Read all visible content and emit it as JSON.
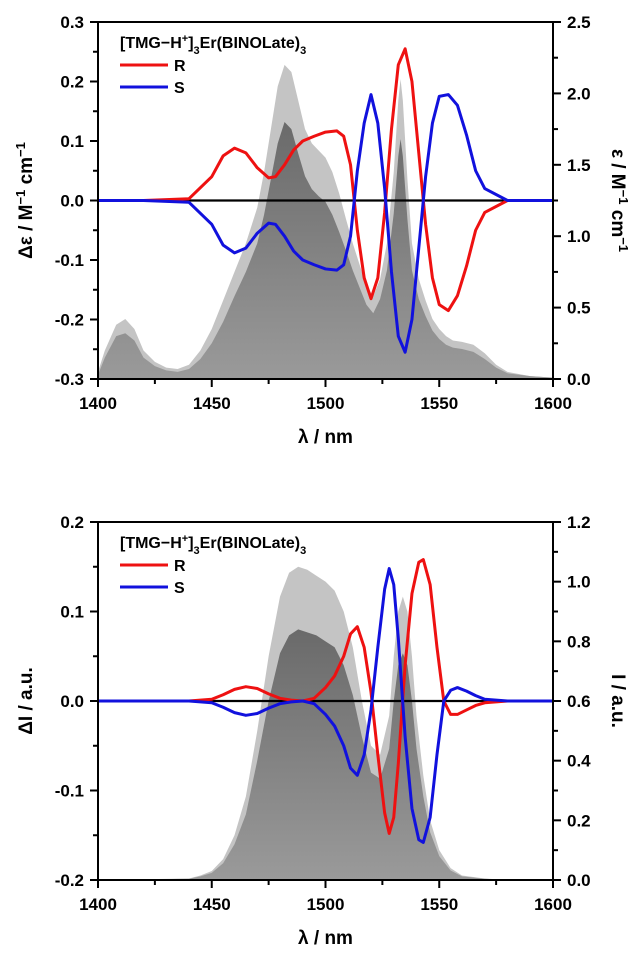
{
  "chart_data": [
    {
      "type": "line",
      "panel": "top",
      "compound": {
        "base": "[TMG−H",
        "sup": "+",
        "after_sup": "]",
        "sub1": "3",
        "middle": "Er(BINOLate)",
        "sub2": "3"
      },
      "xlabel": "λ / nm",
      "ylabel_left": {
        "base": "Δε / M",
        "sup1": "−1",
        "mid": " cm",
        "sup2": "−1"
      },
      "ylabel_right": {
        "base": "ε / M",
        "sup1": "−1",
        "mid": " cm",
        "sup2": "−1"
      },
      "xlim": [
        1400,
        1600
      ],
      "ylim_left": [
        -0.3,
        0.3
      ],
      "ylim_right": [
        0.0,
        2.5
      ],
      "x_ticks": [
        1400,
        1450,
        1500,
        1550,
        1600
      ],
      "x_tick_labels": [
        "1400",
        "1450",
        "1500",
        "1550",
        "1600"
      ],
      "y_left_ticks": [
        -0.3,
        -0.2,
        -0.1,
        0.0,
        0.1,
        0.2,
        0.3
      ],
      "y_left_tick_labels": [
        "-0.3",
        "-0.2",
        "-0.1",
        "0.0",
        "0.1",
        "0.2",
        "0.3"
      ],
      "y_right_ticks": [
        0.0,
        0.5,
        1.0,
        1.5,
        2.0,
        2.5
      ],
      "y_right_tick_labels": [
        "0.0",
        "0.5",
        "1.0",
        "1.5",
        "2.0",
        "2.5"
      ],
      "legend_position": "top-left",
      "series": [
        {
          "name": "R",
          "color": "#ee1111",
          "axis": "left",
          "x": [
            1400,
            1420,
            1440,
            1450,
            1455,
            1460,
            1465,
            1470,
            1475,
            1478,
            1482,
            1486,
            1490,
            1495,
            1500,
            1505,
            1508,
            1511,
            1514,
            1517,
            1520,
            1523,
            1526,
            1529,
            1532,
            1535,
            1538,
            1541,
            1544,
            1547,
            1550,
            1554,
            1558,
            1562,
            1566,
            1570,
            1580,
            1590,
            1600
          ],
          "y": [
            0,
            0,
            0.003,
            0.04,
            0.075,
            0.088,
            0.08,
            0.055,
            0.038,
            0.04,
            0.06,
            0.085,
            0.1,
            0.108,
            0.115,
            0.117,
            0.108,
            0.06,
            -0.05,
            -0.13,
            -0.165,
            -0.13,
            -0.02,
            0.12,
            0.228,
            0.255,
            0.2,
            0.08,
            -0.04,
            -0.13,
            -0.175,
            -0.185,
            -0.16,
            -0.11,
            -0.05,
            -0.02,
            0,
            0,
            0
          ]
        },
        {
          "name": "S",
          "color": "#1111dd",
          "axis": "left",
          "x": [
            1400,
            1420,
            1440,
            1450,
            1455,
            1460,
            1465,
            1470,
            1475,
            1478,
            1482,
            1486,
            1490,
            1495,
            1500,
            1505,
            1508,
            1511,
            1514,
            1517,
            1520,
            1523,
            1526,
            1529,
            1532,
            1535,
            1538,
            1541,
            1544,
            1547,
            1550,
            1554,
            1558,
            1562,
            1566,
            1570,
            1580,
            1590,
            1600
          ],
          "y": [
            0,
            0,
            -0.003,
            -0.04,
            -0.075,
            -0.088,
            -0.08,
            -0.055,
            -0.038,
            -0.04,
            -0.06,
            -0.085,
            -0.1,
            -0.108,
            -0.115,
            -0.117,
            -0.108,
            -0.06,
            0.05,
            0.13,
            0.178,
            0.13,
            0.02,
            -0.12,
            -0.228,
            -0.255,
            -0.2,
            -0.08,
            0.04,
            0.13,
            0.175,
            0.178,
            0.16,
            0.11,
            0.05,
            0.02,
            0,
            0,
            0
          ]
        },
        {
          "name": "",
          "color": "#c4c4c4",
          "axis": "right",
          "fill": true,
          "x": [
            1400,
            1403,
            1408,
            1412,
            1416,
            1420,
            1425,
            1430,
            1435,
            1440,
            1445,
            1450,
            1455,
            1460,
            1465,
            1470,
            1473,
            1476,
            1479,
            1482,
            1485,
            1488,
            1491,
            1494,
            1497,
            1500,
            1503,
            1506,
            1509,
            1512,
            1515,
            1518,
            1521,
            1524,
            1527,
            1530,
            1532,
            1533,
            1534,
            1536,
            1538,
            1541,
            1544,
            1547,
            1550,
            1553,
            1556,
            1560,
            1565,
            1570,
            1575,
            1580,
            1590,
            1600
          ],
          "y": [
            0.05,
            0.2,
            0.38,
            0.42,
            0.35,
            0.2,
            0.12,
            0.08,
            0.07,
            0.1,
            0.2,
            0.35,
            0.55,
            0.75,
            0.95,
            1.2,
            1.45,
            1.75,
            2.05,
            2.2,
            2.15,
            1.95,
            1.75,
            1.65,
            1.6,
            1.55,
            1.45,
            1.3,
            1.12,
            0.95,
            0.8,
            0.65,
            0.58,
            0.7,
            0.95,
            1.45,
            1.95,
            2.1,
            1.95,
            1.4,
            0.95,
            0.7,
            0.55,
            0.42,
            0.35,
            0.3,
            0.27,
            0.26,
            0.24,
            0.18,
            0.1,
            0.05,
            0.02,
            0.01
          ]
        },
        {
          "name": "",
          "color": "#777777",
          "axis": "right",
          "fill": true,
          "x": [
            1400,
            1403,
            1408,
            1412,
            1416,
            1420,
            1425,
            1430,
            1435,
            1440,
            1445,
            1450,
            1455,
            1460,
            1465,
            1470,
            1473,
            1476,
            1479,
            1482,
            1485,
            1488,
            1491,
            1494,
            1497,
            1500,
            1503,
            1506,
            1509,
            1512,
            1515,
            1518,
            1521,
            1524,
            1527,
            1530,
            1532,
            1533,
            1534,
            1536,
            1538,
            1541,
            1544,
            1547,
            1550,
            1553,
            1556,
            1560,
            1565,
            1570,
            1575,
            1580,
            1590,
            1600
          ],
          "y": [
            0.03,
            0.15,
            0.3,
            0.32,
            0.27,
            0.15,
            0.09,
            0.06,
            0.05,
            0.07,
            0.14,
            0.25,
            0.4,
            0.58,
            0.75,
            0.95,
            1.15,
            1.4,
            1.65,
            1.8,
            1.75,
            1.58,
            1.42,
            1.33,
            1.28,
            1.24,
            1.15,
            1.03,
            0.9,
            0.76,
            0.64,
            0.52,
            0.46,
            0.56,
            0.76,
            1.16,
            1.56,
            1.68,
            1.56,
            1.12,
            0.76,
            0.56,
            0.44,
            0.34,
            0.28,
            0.24,
            0.22,
            0.21,
            0.19,
            0.14,
            0.08,
            0.04,
            0.02,
            0.01
          ]
        }
      ]
    },
    {
      "type": "line",
      "panel": "bottom",
      "compound": {
        "base": "[TMG−H",
        "sup": "+",
        "after_sup": "]",
        "sub1": "3",
        "middle": "Er(BINOLate)",
        "sub2": "3"
      },
      "xlabel": "λ / nm",
      "ylabel_left": {
        "base": "ΔI / a.u.",
        "sup1": "",
        "mid": "",
        "sup2": ""
      },
      "ylabel_right": {
        "base": "I / a.u.",
        "sup1": "",
        "mid": "",
        "sup2": ""
      },
      "xlim": [
        1400,
        1600
      ],
      "ylim_left": [
        -0.2,
        0.2
      ],
      "ylim_right": [
        0.0,
        1.2
      ],
      "x_ticks": [
        1400,
        1450,
        1500,
        1550,
        1600
      ],
      "x_tick_labels": [
        "1400",
        "1450",
        "1500",
        "1550",
        "1600"
      ],
      "y_left_ticks": [
        -0.2,
        -0.1,
        0.0,
        0.1,
        0.2
      ],
      "y_left_tick_labels": [
        "-0.2",
        "-0.1",
        "0.0",
        "0.1",
        "0.2"
      ],
      "y_right_ticks": [
        0.0,
        0.2,
        0.4,
        0.6,
        0.8,
        1.0,
        1.2
      ],
      "y_right_tick_labels": [
        "0.0",
        "0.2",
        "0.4",
        "0.6",
        "0.8",
        "1.0",
        "1.2"
      ],
      "legend_position": "top-left",
      "series": [
        {
          "name": "R",
          "color": "#ee1111",
          "axis": "left",
          "x": [
            1400,
            1440,
            1450,
            1455,
            1460,
            1465,
            1470,
            1475,
            1480,
            1485,
            1490,
            1495,
            1500,
            1504,
            1508,
            1511,
            1514,
            1517,
            1520,
            1523,
            1526,
            1528,
            1530,
            1532,
            1535,
            1538,
            1541,
            1543,
            1546,
            1549,
            1552,
            1555,
            1558,
            1562,
            1566,
            1570,
            1580,
            1590,
            1600
          ],
          "y": [
            0,
            0,
            0.002,
            0.007,
            0.013,
            0.016,
            0.014,
            0.008,
            0.003,
            0.001,
            0,
            0.003,
            0.015,
            0.028,
            0.05,
            0.075,
            0.083,
            0.06,
            0.01,
            -0.06,
            -0.125,
            -0.148,
            -0.13,
            -0.07,
            0.04,
            0.12,
            0.155,
            0.158,
            0.13,
            0.06,
            0,
            -0.015,
            -0.015,
            -0.01,
            -0.005,
            -0.002,
            0,
            0,
            0
          ]
        },
        {
          "name": "S",
          "color": "#1111dd",
          "axis": "left",
          "x": [
            1400,
            1440,
            1450,
            1455,
            1460,
            1465,
            1470,
            1475,
            1480,
            1485,
            1490,
            1495,
            1500,
            1504,
            1508,
            1511,
            1514,
            1517,
            1520,
            1523,
            1526,
            1528,
            1530,
            1532,
            1535,
            1538,
            1541,
            1543,
            1546,
            1549,
            1552,
            1555,
            1558,
            1562,
            1566,
            1570,
            1580,
            1590,
            1600
          ],
          "y": [
            0,
            0,
            -0.002,
            -0.007,
            -0.013,
            -0.016,
            -0.014,
            -0.008,
            -0.003,
            -0.001,
            0,
            -0.003,
            -0.015,
            -0.028,
            -0.05,
            -0.075,
            -0.083,
            -0.06,
            -0.01,
            0.06,
            0.125,
            0.148,
            0.13,
            0.07,
            -0.04,
            -0.12,
            -0.155,
            -0.158,
            -0.13,
            -0.06,
            0,
            0.012,
            0.015,
            0.011,
            0.006,
            0.002,
            0,
            0,
            0
          ]
        },
        {
          "name": "",
          "color": "#c4c4c4",
          "axis": "right",
          "fill": true,
          "x": [
            1400,
            1440,
            1445,
            1450,
            1455,
            1460,
            1465,
            1470,
            1475,
            1480,
            1484,
            1488,
            1492,
            1496,
            1500,
            1504,
            1508,
            1512,
            1516,
            1520,
            1524,
            1528,
            1530,
            1532,
            1534,
            1536,
            1538,
            1540,
            1543,
            1546,
            1550,
            1555,
            1560,
            1570,
            1580,
            1600
          ],
          "y": [
            0,
            0.005,
            0.015,
            0.03,
            0.07,
            0.15,
            0.28,
            0.5,
            0.75,
            0.95,
            1.03,
            1.05,
            1.04,
            1.02,
            1.0,
            0.97,
            0.9,
            0.78,
            0.6,
            0.45,
            0.42,
            0.55,
            0.75,
            0.9,
            0.95,
            0.9,
            0.75,
            0.55,
            0.35,
            0.2,
            0.1,
            0.04,
            0.015,
            0.005,
            0,
            0
          ]
        },
        {
          "name": "",
          "color": "#777777",
          "axis": "right",
          "fill": true,
          "x": [
            1400,
            1440,
            1445,
            1450,
            1455,
            1460,
            1465,
            1470,
            1475,
            1480,
            1484,
            1488,
            1492,
            1496,
            1500,
            1504,
            1508,
            1512,
            1516,
            1520,
            1524,
            1528,
            1530,
            1532,
            1534,
            1536,
            1538,
            1540,
            1543,
            1546,
            1550,
            1555,
            1560,
            1570,
            1580,
            1600
          ],
          "y": [
            0,
            0.004,
            0.012,
            0.024,
            0.056,
            0.12,
            0.22,
            0.4,
            0.6,
            0.76,
            0.82,
            0.84,
            0.83,
            0.82,
            0.8,
            0.78,
            0.72,
            0.62,
            0.48,
            0.36,
            0.34,
            0.44,
            0.6,
            0.72,
            0.76,
            0.72,
            0.6,
            0.44,
            0.28,
            0.16,
            0.08,
            0.032,
            0.012,
            0.004,
            0,
            0
          ]
        }
      ]
    }
  ]
}
